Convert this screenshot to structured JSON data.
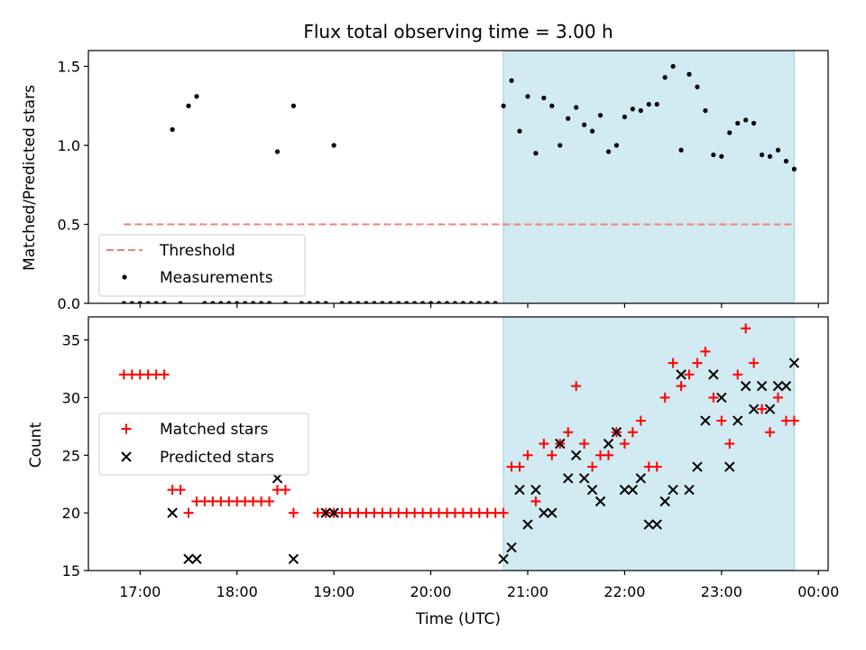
{
  "figure": {
    "title": "Flux total observing time = 3.00 h",
    "xlabel": "Time (UTC)",
    "x_ticks": [
      "17:00",
      "18:00",
      "19:00",
      "20:00",
      "21:00",
      "22:00",
      "23:00",
      "00:00"
    ],
    "colors": {
      "threshold": "#f08080",
      "measurements": "#000000",
      "matched": "#ff0000",
      "predicted": "#000000",
      "shade": "#add8e6"
    }
  },
  "chart_data": [
    {
      "type": "scatter",
      "panel": "top",
      "ylabel": "Matched/Predicted stars",
      "ylim": [
        0,
        1.6
      ],
      "xlim": [
        "16:28",
        "00:06"
      ],
      "y_ticks": [
        "0.0",
        "0.5",
        "1.0",
        "1.5"
      ],
      "shaded_interval": [
        "20:45",
        "23:45"
      ],
      "legend_position": "lower-left",
      "threshold": {
        "name": "Threshold",
        "value": 0.5,
        "x_range": [
          "16:50",
          "23:45"
        ]
      },
      "series": [
        {
          "name": "Measurements",
          "points": [
            [
              "16:50",
              0
            ],
            [
              "16:55",
              0
            ],
            [
              "17:00",
              0
            ],
            [
              "17:05",
              0
            ],
            [
              "17:10",
              0
            ],
            [
              "17:15",
              0
            ],
            [
              "17:20",
              1.1
            ],
            [
              "17:25",
              0
            ],
            [
              "17:30",
              1.25
            ],
            [
              "17:35",
              1.31
            ],
            [
              "17:40",
              0
            ],
            [
              "17:45",
              0
            ],
            [
              "17:50",
              0
            ],
            [
              "17:55",
              0
            ],
            [
              "18:00",
              0
            ],
            [
              "18:05",
              0
            ],
            [
              "18:10",
              0
            ],
            [
              "18:15",
              0
            ],
            [
              "18:20",
              0
            ],
            [
              "18:25",
              0.96
            ],
            [
              "18:30",
              0
            ],
            [
              "18:35",
              1.25
            ],
            [
              "18:40",
              0
            ],
            [
              "18:45",
              0
            ],
            [
              "18:50",
              0
            ],
            [
              "18:55",
              0
            ],
            [
              "19:00",
              1.0
            ],
            [
              "19:05",
              0
            ],
            [
              "19:10",
              0
            ],
            [
              "19:15",
              0
            ],
            [
              "19:20",
              0
            ],
            [
              "19:25",
              0
            ],
            [
              "19:30",
              0
            ],
            [
              "19:35",
              0
            ],
            [
              "19:40",
              0
            ],
            [
              "19:45",
              0
            ],
            [
              "19:50",
              0
            ],
            [
              "19:55",
              0
            ],
            [
              "20:00",
              0
            ],
            [
              "20:05",
              0
            ],
            [
              "20:10",
              0
            ],
            [
              "20:15",
              0
            ],
            [
              "20:20",
              0
            ],
            [
              "20:25",
              0
            ],
            [
              "20:30",
              0
            ],
            [
              "20:35",
              0
            ],
            [
              "20:40",
              0
            ],
            [
              "20:45",
              1.25
            ],
            [
              "20:50",
              1.41
            ],
            [
              "20:55",
              1.09
            ],
            [
              "21:00",
              1.31
            ],
            [
              "21:05",
              0.95
            ],
            [
              "21:10",
              1.3
            ],
            [
              "21:15",
              1.25
            ],
            [
              "21:20",
              1.0
            ],
            [
              "21:25",
              1.17
            ],
            [
              "21:30",
              1.24
            ],
            [
              "21:35",
              1.13
            ],
            [
              "21:40",
              1.09
            ],
            [
              "21:45",
              1.19
            ],
            [
              "21:50",
              0.96
            ],
            [
              "21:55",
              1.0
            ],
            [
              "22:00",
              1.18
            ],
            [
              "22:05",
              1.23
            ],
            [
              "22:10",
              1.22
            ],
            [
              "22:15",
              1.26
            ],
            [
              "22:20",
              1.26
            ],
            [
              "22:25",
              1.43
            ],
            [
              "22:30",
              1.5
            ],
            [
              "22:35",
              0.97
            ],
            [
              "22:40",
              1.45
            ],
            [
              "22:45",
              1.37
            ],
            [
              "22:50",
              1.22
            ],
            [
              "22:55",
              0.94
            ],
            [
              "23:00",
              0.93
            ],
            [
              "23:05",
              1.08
            ],
            [
              "23:10",
              1.14
            ],
            [
              "23:15",
              1.16
            ],
            [
              "23:20",
              1.14
            ],
            [
              "23:25",
              0.94
            ],
            [
              "23:30",
              0.93
            ],
            [
              "23:35",
              0.97
            ],
            [
              "23:40",
              0.9
            ],
            [
              "23:45",
              0.85
            ]
          ]
        }
      ]
    },
    {
      "type": "scatter",
      "panel": "bottom",
      "ylabel": "Count",
      "ylim": [
        15,
        37
      ],
      "xlim": [
        "16:28",
        "00:06"
      ],
      "y_ticks": [
        "15",
        "20",
        "25",
        "30",
        "35"
      ],
      "shaded_interval": [
        "20:45",
        "23:45"
      ],
      "legend_position": "center-left",
      "series": [
        {
          "name": "Matched stars",
          "points": [
            [
              "16:50",
              32
            ],
            [
              "16:55",
              32
            ],
            [
              "17:00",
              32
            ],
            [
              "17:05",
              32
            ],
            [
              "17:10",
              32
            ],
            [
              "17:15",
              32
            ],
            [
              "17:20",
              22
            ],
            [
              "17:25",
              22
            ],
            [
              "17:30",
              20
            ],
            [
              "17:35",
              21
            ],
            [
              "17:40",
              21
            ],
            [
              "17:45",
              21
            ],
            [
              "17:50",
              21
            ],
            [
              "17:55",
              21
            ],
            [
              "18:00",
              21
            ],
            [
              "18:05",
              21
            ],
            [
              "18:10",
              21
            ],
            [
              "18:15",
              21
            ],
            [
              "18:20",
              21
            ],
            [
              "18:25",
              22
            ],
            [
              "18:30",
              22
            ],
            [
              "18:35",
              20
            ],
            [
              "18:50",
              20
            ],
            [
              "18:55",
              20
            ],
            [
              "19:00",
              20
            ],
            [
              "19:05",
              20
            ],
            [
              "19:10",
              20
            ],
            [
              "19:15",
              20
            ],
            [
              "19:20",
              20
            ],
            [
              "19:25",
              20
            ],
            [
              "19:30",
              20
            ],
            [
              "19:35",
              20
            ],
            [
              "19:40",
              20
            ],
            [
              "19:45",
              20
            ],
            [
              "19:50",
              20
            ],
            [
              "19:55",
              20
            ],
            [
              "20:00",
              20
            ],
            [
              "20:05",
              20
            ],
            [
              "20:10",
              20
            ],
            [
              "20:15",
              20
            ],
            [
              "20:20",
              20
            ],
            [
              "20:25",
              20
            ],
            [
              "20:30",
              20
            ],
            [
              "20:35",
              20
            ],
            [
              "20:40",
              20
            ],
            [
              "20:45",
              20
            ],
            [
              "20:50",
              24
            ],
            [
              "20:55",
              24
            ],
            [
              "21:00",
              25
            ],
            [
              "21:05",
              21
            ],
            [
              "21:10",
              26
            ],
            [
              "21:15",
              25
            ],
            [
              "21:20",
              26
            ],
            [
              "21:25",
              27
            ],
            [
              "21:30",
              31
            ],
            [
              "21:35",
              26
            ],
            [
              "21:40",
              24
            ],
            [
              "21:45",
              25
            ],
            [
              "21:50",
              25
            ],
            [
              "21:55",
              27
            ],
            [
              "22:00",
              26
            ],
            [
              "22:05",
              27
            ],
            [
              "22:10",
              28
            ],
            [
              "22:15",
              24
            ],
            [
              "22:20",
              24
            ],
            [
              "22:25",
              30
            ],
            [
              "22:30",
              33
            ],
            [
              "22:35",
              31
            ],
            [
              "22:40",
              32
            ],
            [
              "22:45",
              33
            ],
            [
              "22:50",
              34
            ],
            [
              "22:55",
              30
            ],
            [
              "23:00",
              28
            ],
            [
              "23:05",
              26
            ],
            [
              "23:10",
              32
            ],
            [
              "23:15",
              36
            ],
            [
              "23:20",
              33
            ],
            [
              "23:25",
              29
            ],
            [
              "23:30",
              27
            ],
            [
              "23:35",
              30
            ],
            [
              "23:40",
              28
            ],
            [
              "23:45",
              28
            ]
          ]
        },
        {
          "name": "Predicted stars",
          "points": [
            [
              "17:20",
              20
            ],
            [
              "17:30",
              16
            ],
            [
              "17:35",
              16
            ],
            [
              "18:25",
              23
            ],
            [
              "18:35",
              16
            ],
            [
              "18:55",
              20
            ],
            [
              "19:00",
              20
            ],
            [
              "20:45",
              16
            ],
            [
              "20:50",
              17
            ],
            [
              "20:55",
              22
            ],
            [
              "21:00",
              19
            ],
            [
              "21:05",
              22
            ],
            [
              "21:10",
              20
            ],
            [
              "21:15",
              20
            ],
            [
              "21:20",
              26
            ],
            [
              "21:25",
              23
            ],
            [
              "21:30",
              25
            ],
            [
              "21:35",
              23
            ],
            [
              "21:40",
              22
            ],
            [
              "21:45",
              21
            ],
            [
              "21:50",
              26
            ],
            [
              "21:55",
              27
            ],
            [
              "22:00",
              22
            ],
            [
              "22:05",
              22
            ],
            [
              "22:10",
              23
            ],
            [
              "22:15",
              19
            ],
            [
              "22:20",
              19
            ],
            [
              "22:25",
              21
            ],
            [
              "22:30",
              22
            ],
            [
              "22:35",
              32
            ],
            [
              "22:40",
              22
            ],
            [
              "22:45",
              24
            ],
            [
              "22:50",
              28
            ],
            [
              "22:55",
              32
            ],
            [
              "23:00",
              30
            ],
            [
              "23:05",
              24
            ],
            [
              "23:10",
              28
            ],
            [
              "23:15",
              31
            ],
            [
              "23:20",
              29
            ],
            [
              "23:25",
              31
            ],
            [
              "23:30",
              29
            ],
            [
              "23:35",
              31
            ],
            [
              "23:40",
              31
            ],
            [
              "23:45",
              33
            ]
          ]
        }
      ]
    }
  ]
}
